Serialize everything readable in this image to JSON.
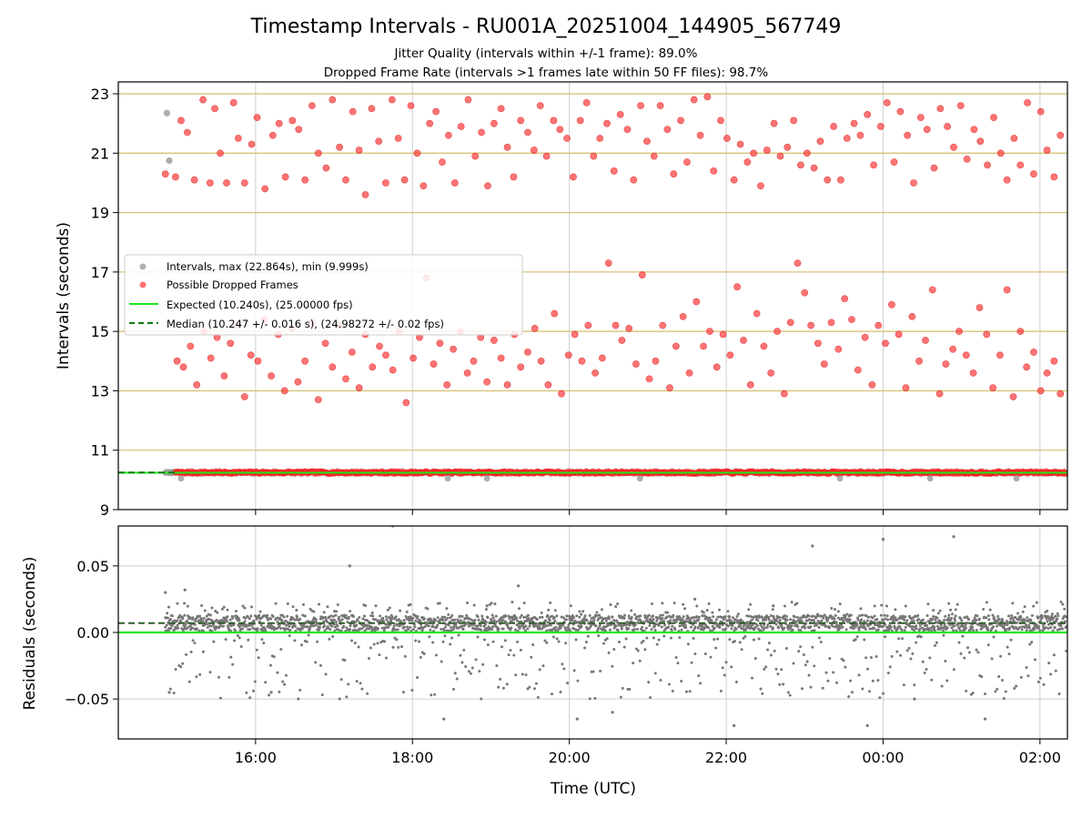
{
  "chart_data": [
    {
      "type": "scatter",
      "id": "intervals",
      "title": "Timestamp Intervals - RU001A_20251004_144905_567749",
      "subtitle_lines": [
        "Jitter Quality (intervals within +/-1 frame): 89.0%",
        "Dropped Frame Rate (intervals >1 frames late within 50 FF files): 98.7%"
      ],
      "ylabel": "Intervals (seconds)",
      "ylim": [
        9,
        23.4
      ],
      "yticks": [
        9,
        11,
        13,
        15,
        17,
        19,
        21,
        23
      ],
      "ytick_labels": [
        "9",
        "11",
        "13",
        "15",
        "17",
        "19",
        "21",
        "23"
      ],
      "xlim_hours": [
        14.25,
        26.35
      ],
      "hlines_gold": [
        11,
        13,
        15,
        17,
        19,
        21,
        23
      ],
      "colors": {
        "intervals": "#9e9e9e",
        "dropped": "#ff2a2a",
        "expected": "#1ee61e",
        "median": "#0b7a0b",
        "gold": "#d9c27a"
      },
      "expected": 10.24,
      "median": 10.247,
      "legend": [
        {
          "label": "Intervals, max (22.864s), min (9.999s)",
          "kind": "marker-gray"
        },
        {
          "label": "Possible Dropped Frames",
          "kind": "marker-red"
        },
        {
          "label": "Expected (10.240s), (25.00000 fps)",
          "kind": "line-green"
        },
        {
          "label": "Median (10.247 +/- 0.016 s), (24.98272 +/- 0.02 fps)",
          "kind": "line-dashed"
        }
      ],
      "legend_position": "center-left",
      "series": [
        {
          "name": "Possible Dropped Frames (upper cluster)",
          "x_hours": [
            14.85,
            14.98,
            15.05,
            15.13,
            15.22,
            15.33,
            15.42,
            15.48,
            15.55,
            15.63,
            15.72,
            15.78,
            15.86,
            15.95,
            16.02,
            16.12,
            16.22,
            16.3,
            16.38,
            16.47,
            16.55,
            16.63,
            16.72,
            16.8,
            16.9,
            16.98,
            17.07,
            17.15,
            17.24,
            17.32,
            17.4,
            17.48,
            17.57,
            17.66,
            17.74,
            17.82,
            17.9,
            17.98,
            18.06,
            18.14,
            18.22,
            18.3,
            18.38,
            18.46,
            18.54,
            18.62,
            18.71,
            18.8,
            18.88,
            18.96,
            19.04,
            19.13,
            19.21,
            19.29,
            19.38,
            19.47,
            19.55,
            19.63,
            19.71,
            19.8,
            19.88,
            19.97,
            20.05,
            20.14,
            20.22,
            20.31,
            20.39,
            20.48,
            20.57,
            20.65,
            20.74,
            20.82,
            20.91,
            20.99,
            21.08,
            21.16,
            21.25,
            21.33,
            21.42,
            21.5,
            21.59,
            21.67,
            21.76,
            21.84,
            21.93,
            22.01,
            22.1,
            22.18,
            22.27,
            22.35,
            22.44,
            22.52,
            22.61,
            22.69,
            22.78,
            22.86,
            22.95,
            23.03,
            23.12,
            23.2,
            23.29,
            23.37,
            23.46,
            23.54,
            23.63,
            23.71,
            23.8,
            23.88,
            23.97,
            24.05,
            24.14,
            24.22,
            24.31,
            24.39,
            24.48,
            24.56,
            24.65,
            24.73,
            24.82,
            24.9,
            24.99,
            25.07,
            25.16,
            25.24,
            25.33,
            25.41,
            25.5,
            25.58,
            25.67,
            25.75,
            25.84,
            25.92,
            26.01,
            26.09,
            26.18,
            26.26
          ],
          "values": [
            20.3,
            20.2,
            22.1,
            21.7,
            20.1,
            22.8,
            20.0,
            22.5,
            21.0,
            20.0,
            22.7,
            21.5,
            20.0,
            21.3,
            22.2,
            19.8,
            21.6,
            22.0,
            20.2,
            22.1,
            21.8,
            20.1,
            22.6,
            21.0,
            20.5,
            22.8,
            21.2,
            20.1,
            22.4,
            21.1,
            19.6,
            22.5,
            21.4,
            20.0,
            22.8,
            21.5,
            20.1,
            22.6,
            21.0,
            19.9,
            22.0,
            22.4,
            20.7,
            21.6,
            20.0,
            21.9,
            22.8,
            20.9,
            21.7,
            19.9,
            22.0,
            22.5,
            21.2,
            20.2,
            22.1,
            21.7,
            21.1,
            22.6,
            20.9,
            22.1,
            21.8,
            21.5,
            20.2,
            22.1,
            22.7,
            20.9,
            21.5,
            22.0,
            20.4,
            22.3,
            21.8,
            20.1,
            22.6,
            21.4,
            20.9,
            22.6,
            21.8,
            20.3,
            22.1,
            20.7,
            22.8,
            21.6,
            22.9,
            20.4,
            22.1,
            21.5,
            20.1,
            21.3,
            20.7,
            21.0,
            19.9,
            21.1,
            22.0,
            20.9,
            21.2,
            22.1,
            20.6,
            21.0,
            20.5,
            21.4,
            20.1,
            21.9,
            20.1,
            21.5,
            22.0,
            21.6,
            22.3,
            20.6,
            21.9,
            22.7,
            20.7,
            22.4,
            21.6,
            20.0,
            22.2,
            21.8,
            20.5,
            22.5,
            21.9,
            21.2,
            22.6,
            20.8,
            21.8,
            21.4,
            20.6,
            22.2,
            21.0,
            20.1,
            21.5,
            20.6,
            22.7,
            20.3,
            22.4,
            21.1,
            20.2,
            21.6
          ],
          "color": "#ff2a2a"
        },
        {
          "name": "Possible Dropped Frames (middle cluster)",
          "x_hours": [
            15.0,
            15.08,
            15.17,
            15.25,
            15.34,
            15.43,
            15.51,
            15.6,
            15.68,
            15.77,
            15.86,
            15.94,
            16.03,
            16.11,
            16.2,
            16.29,
            16.37,
            16.46,
            16.54,
            16.63,
            16.72,
            16.8,
            16.89,
            16.98,
            17.06,
            17.15,
            17.23,
            17.32,
            17.4,
            17.49,
            17.58,
            17.66,
            17.75,
            17.83,
            17.92,
            18.01,
            18.09,
            18.18,
            18.27,
            18.35,
            18.44,
            18.52,
            18.61,
            18.7,
            18.78,
            18.87,
            18.95,
            19.04,
            19.13,
            19.21,
            19.3,
            19.38,
            19.47,
            19.56,
            19.64,
            19.73,
            19.81,
            19.9,
            19.99,
            20.07,
            20.16,
            20.24,
            20.33,
            20.42,
            20.5,
            20.59,
            20.67,
            20.76,
            20.85,
            20.93,
            21.02,
            21.1,
            21.19,
            21.28,
            21.36,
            21.45,
            21.53,
            21.62,
            21.71,
            21.79,
            21.88,
            21.96,
            22.05,
            22.14,
            22.22,
            22.31,
            22.39,
            22.48,
            22.57,
            22.65,
            22.74,
            22.82,
            22.91,
            23.0,
            23.08,
            23.17,
            23.25,
            23.34,
            23.43,
            23.51,
            23.6,
            23.68,
            23.77,
            23.86,
            23.94,
            24.03,
            24.11,
            24.2,
            24.29,
            24.37,
            24.46,
            24.54,
            24.63,
            24.72,
            24.8,
            24.89,
            24.97,
            25.06,
            25.15,
            25.23,
            25.32,
            25.4,
            25.49,
            25.58,
            25.66,
            25.75,
            25.83,
            25.92,
            26.01,
            26.09,
            26.18,
            26.26
          ],
          "values": [
            14.0,
            13.8,
            14.5,
            13.2,
            15.0,
            14.1,
            14.8,
            13.5,
            14.6,
            15.2,
            12.8,
            14.2,
            14.0,
            15.4,
            13.5,
            14.9,
            13.0,
            15.1,
            13.3,
            14.0,
            15.3,
            12.7,
            14.6,
            13.8,
            15.2,
            13.4,
            14.3,
            13.1,
            14.9,
            13.8,
            14.5,
            14.2,
            13.7,
            15.0,
            12.6,
            14.1,
            14.8,
            16.8,
            13.9,
            14.6,
            13.2,
            14.4,
            15.0,
            13.6,
            14.0,
            14.8,
            13.3,
            14.7,
            14.1,
            13.2,
            14.9,
            13.8,
            14.3,
            15.1,
            14.0,
            13.2,
            15.6,
            12.9,
            14.2,
            14.9,
            14.0,
            15.2,
            13.6,
            14.1,
            17.3,
            15.2,
            14.7,
            15.1,
            13.9,
            16.9,
            13.4,
            14.0,
            15.2,
            13.1,
            14.5,
            15.5,
            13.6,
            16.0,
            14.5,
            15.0,
            13.8,
            14.9,
            14.2,
            16.5,
            14.7,
            13.2,
            15.6,
            14.5,
            13.6,
            15.0,
            12.9,
            15.3,
            17.3,
            16.3,
            15.2,
            14.6,
            13.9,
            15.3,
            14.4,
            16.1,
            15.4,
            13.7,
            14.8,
            13.2,
            15.2,
            14.6,
            15.9,
            14.9,
            13.1,
            15.5,
            14.0,
            14.7,
            16.4,
            12.9,
            13.9,
            14.4,
            15.0,
            14.2,
            13.6,
            15.8,
            14.9,
            13.1,
            14.2,
            16.4,
            12.8,
            15.0,
            13.8,
            14.3,
            13.0,
            13.6,
            14.0,
            12.9
          ],
          "color": "#ff2a2a"
        },
        {
          "name": "Intervals (gray outliers)",
          "x_hours": [
            14.87,
            14.9
          ],
          "values": [
            22.35,
            20.75
          ],
          "color": "#9e9e9e"
        }
      ]
    },
    {
      "type": "scatter",
      "id": "residuals",
      "ylabel": "Residuals (seconds)",
      "xlabel": "Time (UTC)",
      "ylim": [
        -0.08,
        0.08
      ],
      "yticks": [
        -0.05,
        0.0,
        0.05
      ],
      "ytick_labels": [
        "−0.05",
        "0.00",
        "0.05"
      ],
      "xlim_hours": [
        14.25,
        26.35
      ],
      "xticks_hours": [
        16,
        18,
        20,
        22,
        24,
        26
      ],
      "xtick_labels": [
        "16:00",
        "18:00",
        "20:00",
        "22:00",
        "00:00",
        "02:00"
      ],
      "expected_residual": 0.0,
      "median_residual": 0.007,
      "grid": true,
      "series": [
        {
          "name": "Residual outliers",
          "x_hours": [
            14.85,
            14.9,
            15.1,
            16.2,
            17.2,
            17.75,
            18.4,
            18.95,
            19.35,
            20.1,
            20.55,
            21.6,
            22.1,
            22.6,
            23.1,
            23.8,
            24.0,
            24.4,
            24.9,
            25.3
          ],
          "values": [
            0.03,
            -0.045,
            0.032,
            -0.045,
            0.05,
            0.08,
            -0.065,
            0.02,
            0.035,
            -0.065,
            -0.06,
            0.025,
            -0.07,
            0.02,
            0.065,
            -0.07,
            0.07,
            -0.05,
            0.072,
            -0.065
          ],
          "color": "#777777"
        }
      ]
    }
  ]
}
